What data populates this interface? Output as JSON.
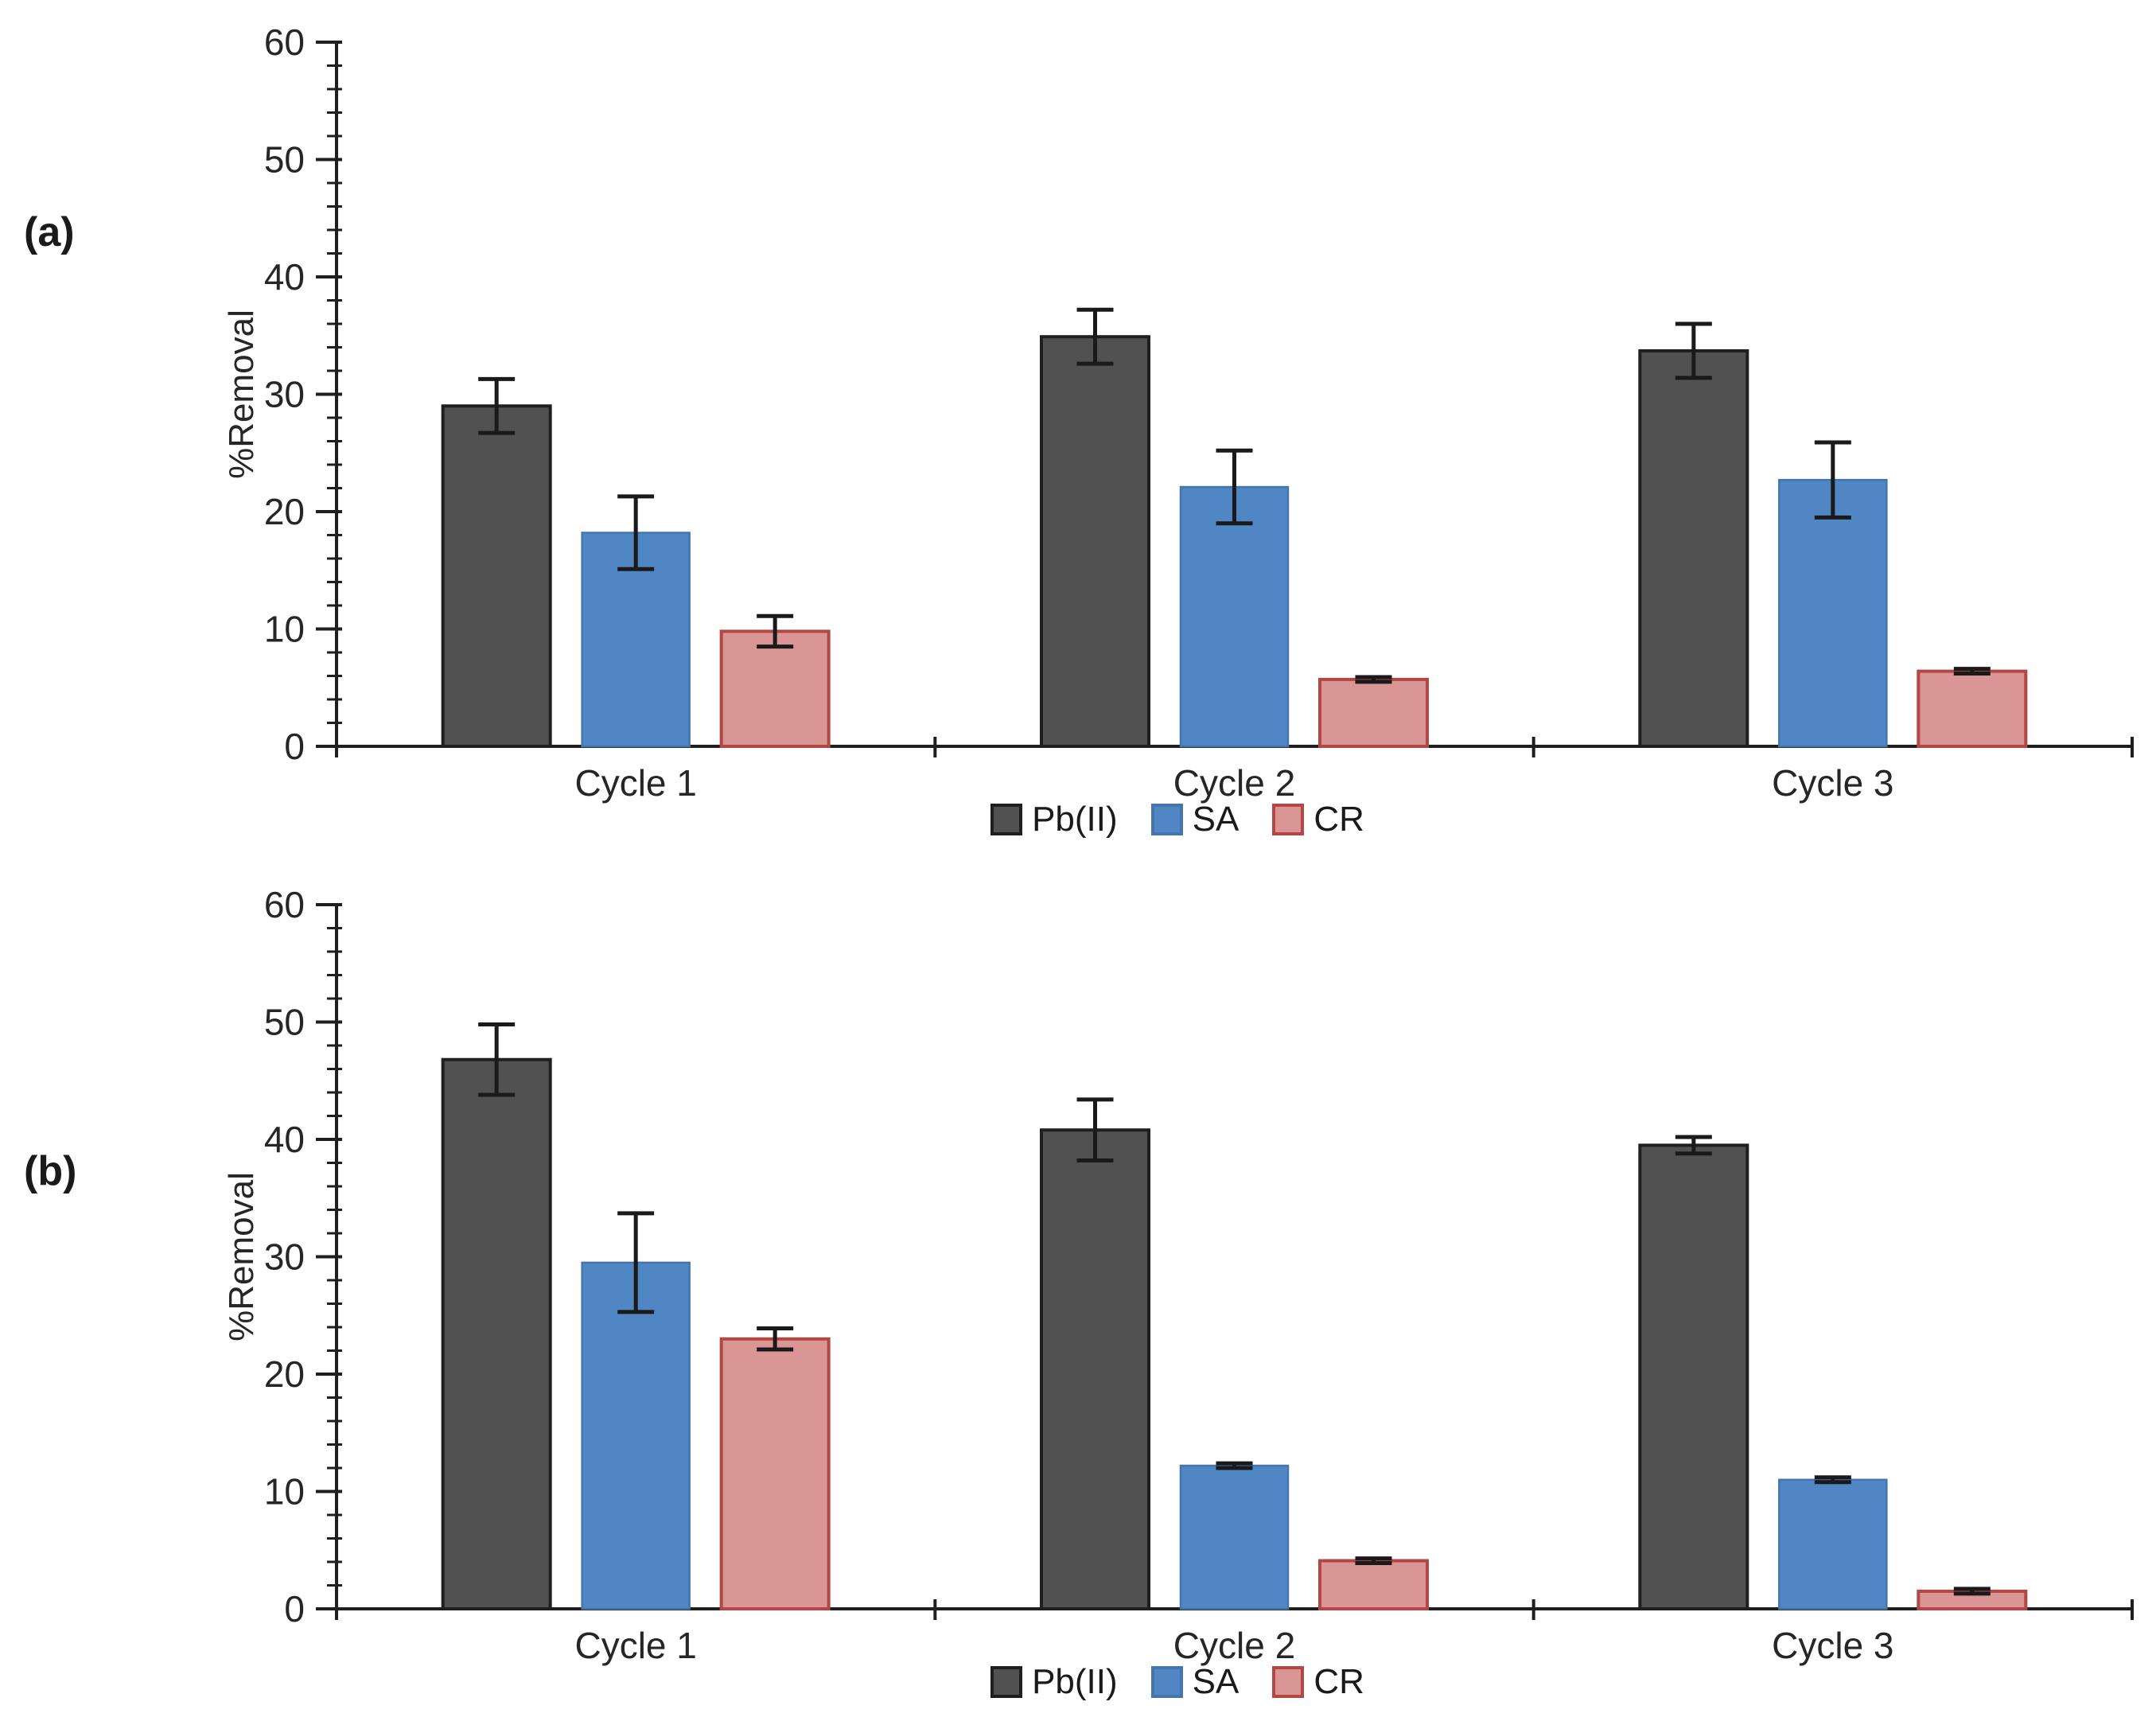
{
  "figure": {
    "background": "#ffffff",
    "text_color": "#262626",
    "axis_color": "#1f1f1f"
  },
  "panels": [
    {
      "label": "(a)"
    },
    {
      "label": "(b)"
    }
  ],
  "chart_data": [
    {
      "type": "bar",
      "panel_label": "(a)",
      "title": "",
      "xlabel": "",
      "ylabel": "%Removal",
      "ylim": [
        0,
        60
      ],
      "y_major_tick": 10,
      "y_minor_tick": 2,
      "grid": false,
      "legend_position": "bottom",
      "categories": [
        "Cycle 1",
        "Cycle 2",
        "Cycle 3"
      ],
      "series": [
        {
          "name": "Pb(II)",
          "color": "#515151",
          "border": "#1f1f1f",
          "values": [
            29.0,
            34.9,
            33.7
          ],
          "errors": [
            2.3,
            2.3,
            2.3
          ]
        },
        {
          "name": "SA",
          "color": "#5186C5",
          "border": "#4475AE",
          "values": [
            18.2,
            22.1,
            22.7
          ],
          "errors": [
            3.1,
            3.1,
            3.2
          ]
        },
        {
          "name": "CR",
          "color": "#D99694",
          "border": "#B24743",
          "values": [
            9.8,
            5.7,
            6.4
          ],
          "errors": [
            1.3,
            0.2,
            0.2
          ]
        }
      ]
    },
    {
      "type": "bar",
      "panel_label": "(b)",
      "title": "",
      "xlabel": "",
      "ylabel": "%Removal",
      "ylim": [
        0,
        60
      ],
      "y_major_tick": 10,
      "y_minor_tick": 2,
      "grid": false,
      "legend_position": "bottom",
      "categories": [
        "Cycle 1",
        "Cycle 2",
        "Cycle 3"
      ],
      "series": [
        {
          "name": "Pb(II)",
          "color": "#515151",
          "border": "#1f1f1f",
          "values": [
            46.8,
            40.8,
            39.5
          ],
          "errors": [
            3.0,
            2.6,
            0.7
          ]
        },
        {
          "name": "SA",
          "color": "#5186C5",
          "border": "#4475AE",
          "values": [
            29.5,
            12.2,
            11.0
          ],
          "errors": [
            4.2,
            0.2,
            0.2
          ]
        },
        {
          "name": "CR",
          "color": "#D99694",
          "border": "#B24743",
          "values": [
            23.0,
            4.1,
            1.5
          ],
          "errors": [
            0.9,
            0.2,
            0.2
          ]
        }
      ]
    }
  ]
}
